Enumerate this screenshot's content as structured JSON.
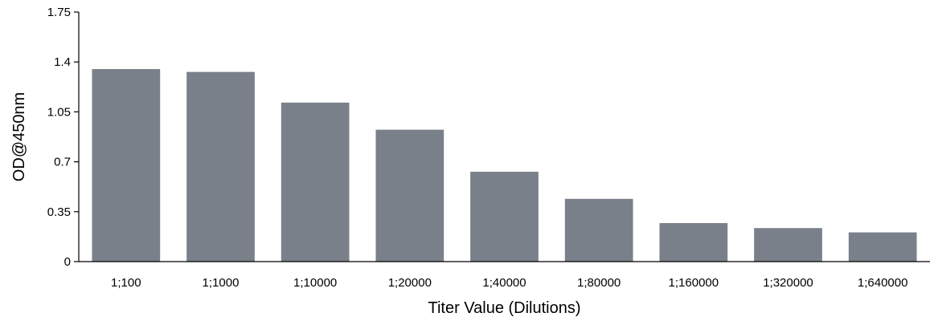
{
  "chart_data": {
    "type": "bar",
    "title": "",
    "xlabel": "Titer Value (Dilutions)",
    "ylabel": "OD@450nm",
    "ylim": [
      0,
      1.75
    ],
    "yticks": [
      "0",
      "0.35",
      "0.7",
      "1.05",
      "1.4",
      "1.75"
    ],
    "ytick_values": [
      0,
      0.35,
      0.7,
      1.05,
      1.4,
      1.75
    ],
    "categories": [
      "1;100",
      "1;1000",
      "1;10000",
      "1;20000",
      "1;40000",
      "1;80000",
      "1;160000",
      "1;320000",
      "1;640000"
    ],
    "values": [
      1.35,
      1.33,
      1.115,
      0.925,
      0.63,
      0.44,
      0.27,
      0.235,
      0.205
    ],
    "grid": false,
    "legend": "none",
    "bar_color": "#7a8089",
    "axis_color": "#000000"
  }
}
